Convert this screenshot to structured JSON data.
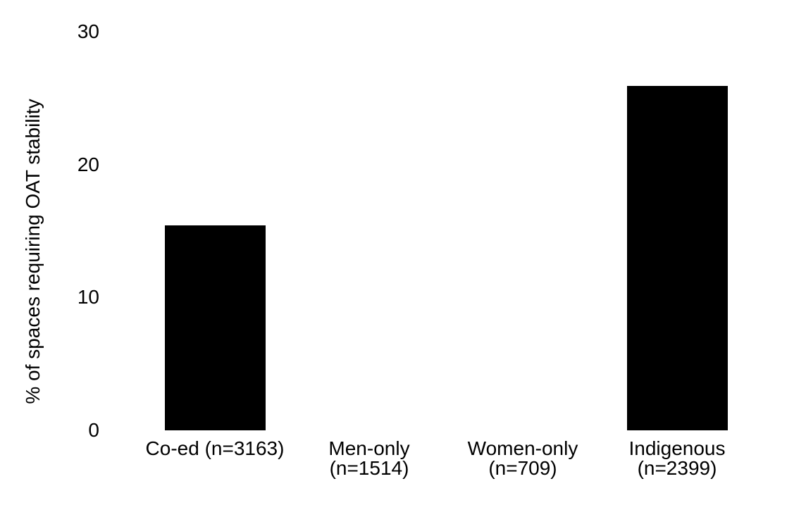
{
  "chart_data": {
    "type": "bar",
    "title": "",
    "xlabel": "",
    "ylabel": "% of spaces requiring OAT stability",
    "categories": [
      "Co-ed (n=3163)",
      "Men-only (n=1514)",
      "Women-only (n=709)",
      "Indigenous (n=2399)"
    ],
    "category_label_lines": [
      [
        "Co-ed (n=3163)"
      ],
      [
        "Men-only",
        "(n=1514)"
      ],
      [
        "Women-only",
        "(n=709)"
      ],
      [
        "Indigenous",
        "(n=2399)"
      ]
    ],
    "values": [
      15.4,
      0,
      0,
      25.9
    ],
    "yticks": [
      0,
      10,
      20,
      30
    ],
    "ylim": [
      0,
      30
    ],
    "bar_color": "#000000",
    "background_color": "#ffffff",
    "text_color": "#000000",
    "grid": false,
    "legend_position": "none",
    "axis_lines": "none"
  }
}
